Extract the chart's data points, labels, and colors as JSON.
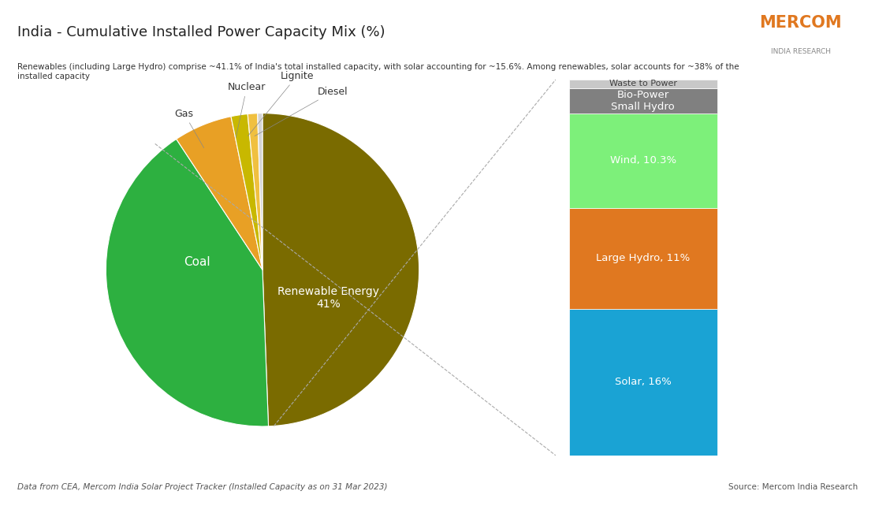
{
  "title": "India - Cumulative Installed Power Capacity Mix (%)",
  "subtitle": "Renewables (including Large Hydro) comprise ~41.1% of India's total installed capacity, with solar accounting for ~15.6%. Among renewables, solar accounts for ~38% of the\ninstalled capacity",
  "footer_left": "Data from CEA, Mercom India Solar Project Tracker (Installed Capacity as on 31 Mar 2023)",
  "footer_right": "Source: Mercom India Research",
  "pie_labels": [
    "Coal",
    "Renewable Energy\n41%",
    "Gas",
    "Nuclear",
    "Lignite",
    "Diesel"
  ],
  "pie_values": [
    49,
    41,
    6,
    1.7,
    1.0,
    0.5
  ],
  "pie_colors": [
    "#7a6b00",
    "#2db040",
    "#e8a025",
    "#c8b800",
    "#f0c040",
    "#d4d4d4"
  ],
  "bar_labels": [
    "Solar, 16%",
    "Large Hydro, 11%",
    "Wind, 10.3%",
    "Bio-Power\nSmall Hydro",
    "Waste to Power"
  ],
  "bar_values": [
    16,
    11,
    10.3,
    2.8,
    0.9
  ],
  "bar_colors": [
    "#1aa3d4",
    "#e07820",
    "#7df07a",
    "#808080",
    "#c8c8c8"
  ],
  "bar_text_colors": [
    "#ffffff",
    "#ffffff",
    "#ffffff",
    "#ffffff",
    "#404040"
  ],
  "background_color": "#ffffff",
  "mercom_color": "#e07820",
  "mercom_sub_color": "#888888"
}
